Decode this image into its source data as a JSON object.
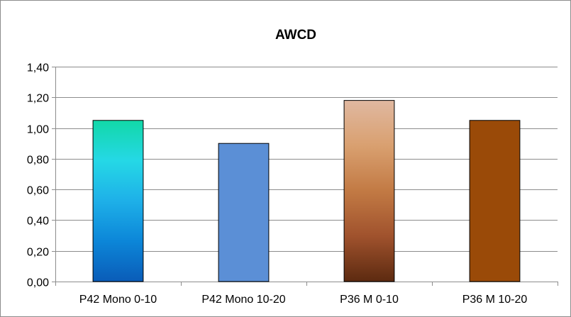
{
  "chart_data": {
    "type": "bar",
    "title": "AWCD",
    "xlabel": "",
    "ylabel": "",
    "categories": [
      "P42 Mono 0-10",
      "P42 Mono 10-20",
      "P36 M 0-10",
      "P36 M 10-20"
    ],
    "values": [
      1.05,
      0.9,
      1.18,
      1.05
    ],
    "ylim": [
      0,
      1.4
    ],
    "yticks": [
      "0,00",
      "0,20",
      "0,40",
      "0,60",
      "0,80",
      "1,00",
      "1,20",
      "1,40"
    ],
    "grid": true,
    "legend": "none",
    "bar_fills": [
      {
        "type": "gradient",
        "stops": [
          "#12d8a8",
          "#25d8e6",
          "#1eb0e8",
          "#0c86d8",
          "#0a5cb8"
        ]
      },
      {
        "type": "solid",
        "color": "#5b8fd6"
      },
      {
        "type": "gradient",
        "stops": [
          "#e0b8a0",
          "#d9a070",
          "#c27a44",
          "#a0522d",
          "#5c2a10"
        ]
      },
      {
        "type": "solid",
        "color": "#9a4a08"
      }
    ]
  }
}
